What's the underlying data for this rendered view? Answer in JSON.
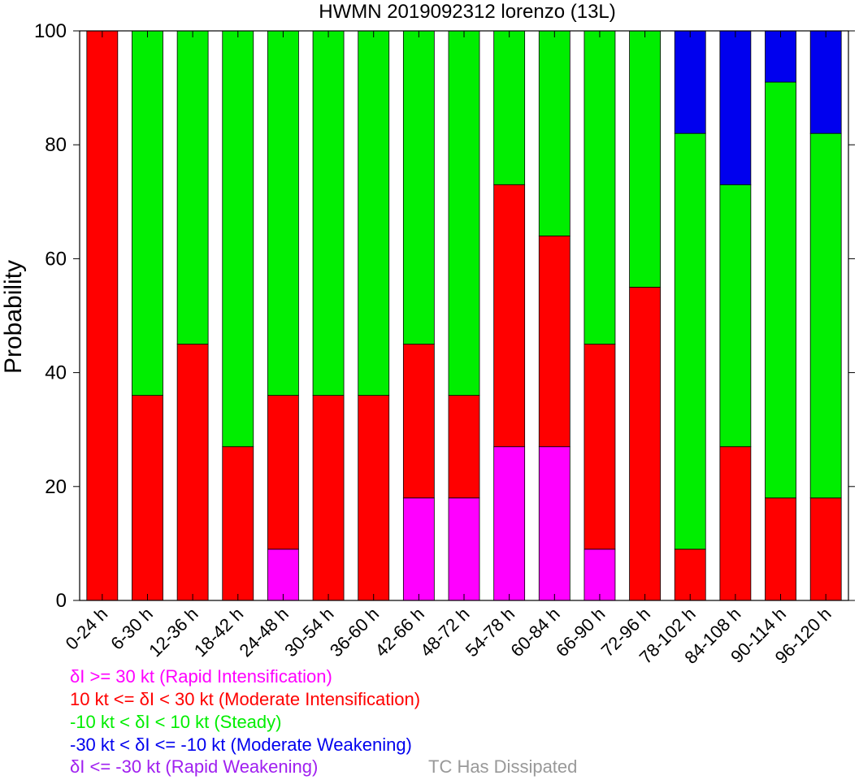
{
  "chart_data": {
    "type": "bar",
    "stacked": true,
    "title": "HWMN 2019092312 lorenzo (13L)",
    "ylabel": "Probability",
    "xlabel": "",
    "ylim": [
      0,
      100
    ],
    "yticks": [
      0,
      20,
      40,
      60,
      80,
      100
    ],
    "grid": false,
    "categories": [
      "0-24 h",
      "6-30 h",
      "12-36 h",
      "18-42 h",
      "24-48 h",
      "30-54 h",
      "36-60 h",
      "42-66 h",
      "48-72 h",
      "54-78 h",
      "60-84 h",
      "66-90 h",
      "72-96 h",
      "78-102 h",
      "84-108 h",
      "90-114 h",
      "96-120 h"
    ],
    "series": [
      {
        "name": "δI >= 30 kt (Rapid Intensification)",
        "color": "#ff00ff",
        "values": [
          0,
          0,
          0,
          0,
          9,
          0,
          0,
          18,
          18,
          27,
          27,
          9,
          0,
          0,
          0,
          0,
          0
        ]
      },
      {
        "name": "10 kt <= δI < 30 kt (Moderate Intensification)",
        "color": "#ff0000",
        "values": [
          100,
          36,
          45,
          27,
          27,
          36,
          36,
          27,
          18,
          46,
          37,
          36,
          55,
          9,
          27,
          18,
          18
        ]
      },
      {
        "name": "-10 kt < δI < 10 kt (Steady)",
        "color": "#00ee00",
        "values": [
          0,
          64,
          55,
          73,
          64,
          64,
          64,
          55,
          64,
          27,
          36,
          55,
          45,
          73,
          46,
          73,
          64
        ]
      },
      {
        "name": "-30 kt < δI <= -10 kt (Moderate Weakening)",
        "color": "#0000ee",
        "values": [
          0,
          0,
          0,
          0,
          0,
          0,
          0,
          0,
          0,
          0,
          0,
          0,
          0,
          18,
          27,
          9,
          18
        ]
      },
      {
        "name": "δI <= -30 kt (Rapid Weakening)",
        "color": "#a020f0",
        "values": [
          0,
          0,
          0,
          0,
          0,
          0,
          0,
          0,
          0,
          0,
          0,
          0,
          0,
          0,
          0,
          0,
          0
        ]
      },
      {
        "name": "TC Has Dissipated",
        "color": "#999999",
        "values": [
          0,
          0,
          0,
          0,
          0,
          0,
          0,
          0,
          0,
          0,
          0,
          0,
          0,
          0,
          0,
          0,
          0
        ]
      }
    ],
    "legend": [
      {
        "text": "δI >= 30 kt (Rapid Intensification)",
        "color": "#ff00ff"
      },
      {
        "text": "10 kt <= δI < 30 kt (Moderate Intensification)",
        "color": "#ff0000"
      },
      {
        "text": "-10 kt < δI < 10 kt (Steady)",
        "color": "#00ee00"
      },
      {
        "text": "-30 kt < δI <= -10 kt (Moderate Weakening)",
        "color": "#0000ee"
      },
      {
        "text": "δI <= -30 kt (Rapid Weakening)",
        "color": "#a020f0"
      },
      {
        "text": "TC Has Dissipated",
        "color": "#999999"
      }
    ],
    "legend_placement": "bottom-left"
  }
}
